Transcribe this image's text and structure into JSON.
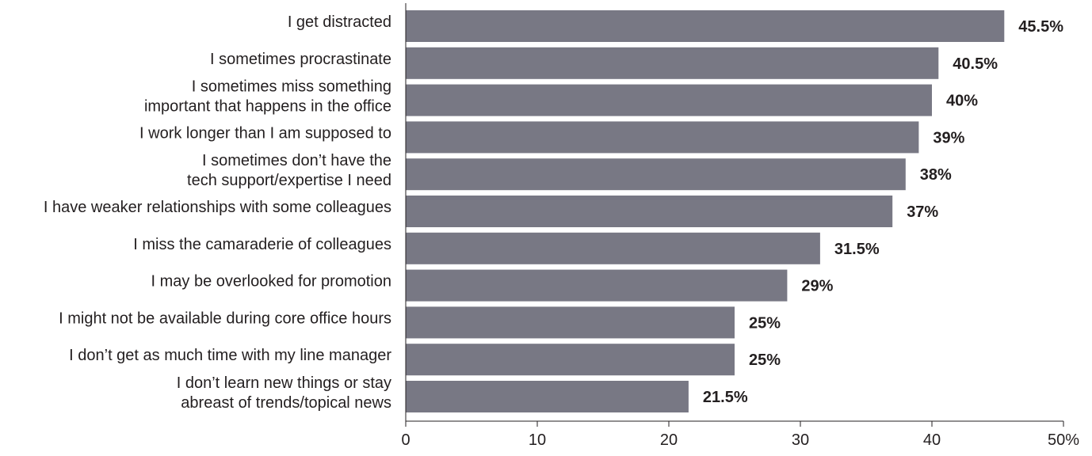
{
  "chart_data": {
    "type": "bar",
    "orientation": "horizontal",
    "categories": [
      [
        "I get distracted"
      ],
      [
        "I sometimes procrastinate"
      ],
      [
        "I sometimes miss something",
        "important that happens in the office"
      ],
      [
        "I work longer than I am supposed to"
      ],
      [
        "I sometimes don’t have the",
        "tech support/expertise I need"
      ],
      [
        "I have weaker relationships with some colleagues"
      ],
      [
        "I miss the camaraderie of colleagues"
      ],
      [
        "I may be overlooked for promotion"
      ],
      [
        "I might not be available during core office hours"
      ],
      [
        "I don’t get as much time with my line manager"
      ],
      [
        "I don’t learn new things or stay",
        "abreast of trends/topical news"
      ]
    ],
    "values": [
      45.5,
      40.5,
      40,
      39,
      38,
      37,
      31.5,
      29,
      25,
      25,
      21.5
    ],
    "value_labels": [
      "45.5%",
      "40.5%",
      "40%",
      "39%",
      "38%",
      "37%",
      "31.5%",
      "29%",
      "25%",
      "25%",
      "21.5%"
    ],
    "xlim": [
      0,
      50
    ],
    "x_ticks": [
      0,
      10,
      20,
      30,
      40,
      50
    ],
    "x_tick_labels": [
      "0",
      "10",
      "20",
      "30",
      "40",
      "50%"
    ],
    "grid": false,
    "bar_color": "#787884",
    "text_color": "#231f20",
    "axis_color": "#231f20"
  }
}
